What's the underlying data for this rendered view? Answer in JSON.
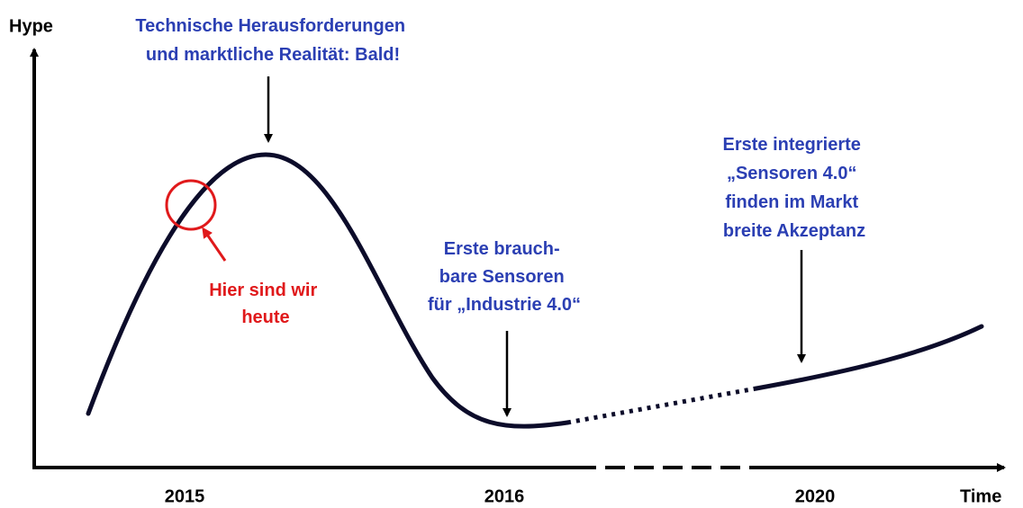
{
  "axes": {
    "y_label": "Hype",
    "x_label": "Time",
    "years": [
      "2015",
      "2016",
      "2020"
    ]
  },
  "annotations": [
    {
      "lines": [
        "Technische Herausforderungen",
        "und marktliche Realität: Bald!"
      ]
    },
    {
      "lines": [
        "Erste brauch-",
        "bare Sensoren",
        "für „Industrie 4.0“"
      ]
    },
    {
      "lines": [
        "Erste integrierte",
        "„Sensoren 4.0“",
        "finden im Markt",
        "breite Akzeptanz"
      ]
    },
    {
      "lines": [
        "Hier sind wir",
        "heute"
      ]
    }
  ]
}
